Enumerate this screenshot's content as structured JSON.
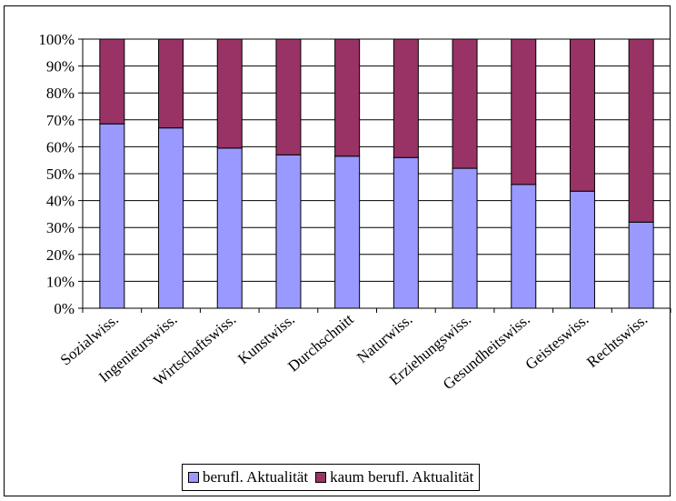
{
  "chart_data": {
    "type": "bar",
    "stacked": true,
    "percent": true,
    "categories": [
      "Sozialwiss.",
      "Ingenieurswiss.",
      "Wirtschaftswiss.",
      "Kunstwiss.",
      "Durchschnitt",
      "Naturwiss.",
      "Erziehungswiss.",
      "Gesundheitswiss.",
      "Geisteswiss.",
      "Rechtswiss."
    ],
    "series": [
      {
        "name": "berufl. Aktualität",
        "color": "#9999ff",
        "values": [
          68.5,
          67,
          59.5,
          57,
          56.5,
          56,
          52,
          46,
          43.5,
          32
        ]
      },
      {
        "name": "kaum berufl. Aktualität",
        "color": "#993366",
        "values": [
          31.5,
          33,
          40.5,
          43,
          43.5,
          44,
          48,
          54,
          56.5,
          68
        ]
      }
    ],
    "yticks": [
      "0%",
      "10%",
      "20%",
      "30%",
      "40%",
      "50%",
      "60%",
      "70%",
      "80%",
      "90%",
      "100%"
    ],
    "ylim": [
      0,
      100
    ],
    "grid": true,
    "legend_position": "bottom"
  }
}
